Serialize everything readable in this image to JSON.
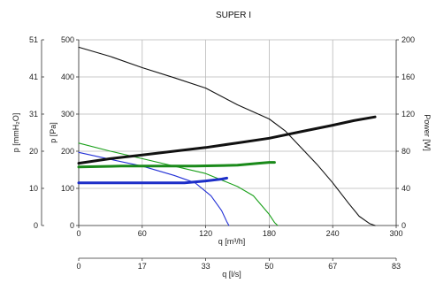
{
  "chart_data": {
    "type": "line",
    "title": "SUPER I",
    "xlabel_primary": "q [m³/h]",
    "xlabel_secondary": "q [l/s]",
    "ylabel_left_outer": "p [mmH₂O]",
    "ylabel_left_inner": "p [Pa]",
    "ylabel_right": "Power [W]",
    "x_primary": {
      "min": 0,
      "max": 300,
      "ticks": [
        "0",
        "60",
        "120",
        "180",
        "240",
        "300"
      ]
    },
    "x_secondary": {
      "min": 0,
      "max": 83,
      "ticks": [
        "0",
        "17",
        "33",
        "50",
        "67",
        "83"
      ]
    },
    "y_left_pa": {
      "min": 0,
      "max": 500,
      "ticks": [
        "0",
        "100",
        "200",
        "300",
        "400",
        "500"
      ]
    },
    "y_left_mmh2o": {
      "min": 0,
      "max": 51,
      "ticks": [
        "0",
        "10",
        "20",
        "31",
        "41",
        "51"
      ]
    },
    "y_right_w": {
      "min": 0,
      "max": 200,
      "ticks": [
        "0",
        "40",
        "80",
        "120",
        "160",
        "200"
      ]
    },
    "grid": true,
    "series": [
      {
        "axis": "pa",
        "color": "#111111",
        "width": 1.1,
        "points": [
          [
            0,
            480
          ],
          [
            30,
            455
          ],
          [
            60,
            425
          ],
          [
            90,
            398
          ],
          [
            120,
            370
          ],
          [
            150,
            325
          ],
          [
            180,
            287
          ],
          [
            195,
            255
          ],
          [
            210,
            210
          ],
          [
            225,
            165
          ],
          [
            240,
            115
          ],
          [
            255,
            60
          ],
          [
            265,
            25
          ],
          [
            275,
            5
          ],
          [
            280,
            0
          ]
        ]
      },
      {
        "axis": "pa",
        "color": "#1aa01a",
        "width": 1.1,
        "points": [
          [
            0,
            222
          ],
          [
            30,
            200
          ],
          [
            60,
            180
          ],
          [
            90,
            160
          ],
          [
            120,
            140
          ],
          [
            150,
            105
          ],
          [
            165,
            80
          ],
          [
            180,
            30
          ],
          [
            185,
            8
          ],
          [
            188,
            0
          ]
        ]
      },
      {
        "axis": "pa",
        "color": "#2230d6",
        "width": 1.1,
        "points": [
          [
            0,
            197
          ],
          [
            30,
            178
          ],
          [
            60,
            160
          ],
          [
            90,
            135
          ],
          [
            110,
            115
          ],
          [
            125,
            80
          ],
          [
            135,
            40
          ],
          [
            140,
            10
          ],
          [
            142,
            0
          ]
        ]
      },
      {
        "axis": "w",
        "color": "#111111",
        "width": 3,
        "points": [
          [
            0,
            67
          ],
          [
            30,
            72
          ],
          [
            60,
            76
          ],
          [
            90,
            80
          ],
          [
            120,
            84
          ],
          [
            150,
            89
          ],
          [
            180,
            94
          ],
          [
            210,
            101
          ],
          [
            240,
            108
          ],
          [
            260,
            113
          ],
          [
            280,
            117
          ]
        ]
      },
      {
        "axis": "w",
        "color": "#1a8a1a",
        "width": 3,
        "points": [
          [
            0,
            63
          ],
          [
            40,
            64
          ],
          [
            80,
            64
          ],
          [
            110,
            64
          ],
          [
            150,
            65
          ],
          [
            170,
            67
          ],
          [
            180,
            68
          ],
          [
            185,
            68
          ]
        ]
      },
      {
        "axis": "w",
        "color": "#1c2ec8",
        "width": 3,
        "points": [
          [
            0,
            46
          ],
          [
            40,
            46
          ],
          [
            80,
            46
          ],
          [
            100,
            46
          ],
          [
            120,
            48
          ],
          [
            135,
            50
          ],
          [
            140,
            51
          ]
        ]
      }
    ]
  }
}
